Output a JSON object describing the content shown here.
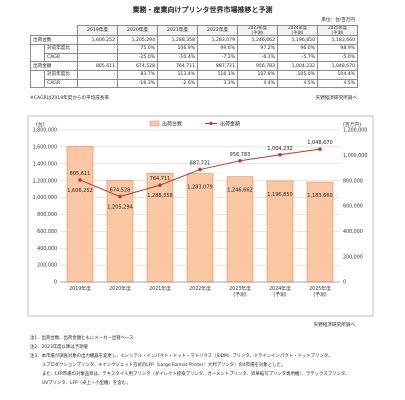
{
  "title": "業務・産業向けプリンタ世界市場推移と予測",
  "unit": "単位：台/百万円",
  "table": {
    "header": [
      "2019年度",
      "2020年度",
      "2021年度",
      "2022年度",
      "2023年度\n(予測)",
      "2024年度\n(予測)",
      "2025年度\n(予測)"
    ],
    "rows": [
      {
        "group": "出荷台数",
        "label": "",
        "values": [
          "1,606,252",
          "1,205,294",
          "1,288,358",
          "1,283,079",
          "1,246,662",
          "1,196,850",
          "1,183,660"
        ]
      },
      {
        "group": "",
        "label": "対前年度比",
        "values": [
          "-",
          "75.0%",
          "106.9%",
          "99.6%",
          "97.2%",
          "96.0%",
          "98.9%"
        ]
      },
      {
        "group": "",
        "label": "CAGR",
        "values": [
          "-",
          "-25.0%",
          "-10.4%",
          "-7.2%",
          "-6.1%",
          "-5.7%",
          "-5.0%"
        ]
      },
      {
        "group": "出荷金額",
        "label": "",
        "values": [
          "805,611",
          "674,528",
          "764,711",
          "887,721",
          "956,783",
          "1,004,232",
          "1,048,670"
        ]
      },
      {
        "group": "",
        "label": "対前年度比",
        "values": [
          "-",
          "83.7%",
          "113.4%",
          "116.1%",
          "107.8%",
          "105.0%",
          "104.4%"
        ]
      },
      {
        "group": "",
        "label": "CAGR",
        "values": [
          "-",
          "-16.3%",
          "-2.6%",
          "3.3%",
          "4.4%",
          "4.5%",
          "4.5%"
        ]
      }
    ]
  },
  "table_note": "※CAGRは2019年度からの平均成長率",
  "source": "矢野経済研究所調べ",
  "chart_data": {
    "type": "bar",
    "categories": [
      "2019年度",
      "2020年度",
      "2021年度",
      "2022年度",
      "2023年度\n(予測)",
      "2024年度\n(予測)",
      "2025年度\n(予測)"
    ],
    "series": [
      {
        "name": "出荷台数",
        "type": "bar",
        "axis": "left",
        "values": [
          1606252,
          1205294,
          1288358,
          1283079,
          1246662,
          1196850,
          1183660
        ],
        "labels": [
          "1,606,252",
          "1,205,294",
          "1,288,358",
          "1,283,079",
          "1,246,662",
          "1,196,850",
          "1,183,660"
        ]
      },
      {
        "name": "出荷金額",
        "type": "line",
        "axis": "right",
        "values": [
          805611,
          674528,
          764711,
          887721,
          956783,
          1004232,
          1048670
        ],
        "labels": [
          "805,611",
          "674,528",
          "764,711",
          "887,721",
          "956,783",
          "1,004,232",
          "1,048,670"
        ]
      }
    ],
    "left_axis": {
      "unit": "(台)",
      "ylim": [
        0,
        1800000
      ],
      "ticks": [
        "0",
        "200,000",
        "400,000",
        "600,000",
        "800,000",
        "1,000,000",
        "1,200,000",
        "1,400,000",
        "1,600,000",
        "1,800,000"
      ]
    },
    "right_axis": {
      "unit": "(百万円)",
      "ylim": [
        0,
        1200000
      ],
      "ticks": [
        "0",
        "200,000",
        "400,000",
        "600,000",
        "800,000",
        "1,000,000",
        "1,200,000"
      ]
    },
    "grid": true,
    "legend": "top",
    "colors": {
      "bar": "#f9c7a4",
      "bar_stroke": "#e98a4d",
      "line": "#c0392b",
      "grid": "#cccccc"
    }
  },
  "notes": [
    "注1．出荷台数、出荷金額ともにメーカー出荷ベース",
    "注2．2023年度以降は予測値",
    "注3．本市場が調査対象の出力機器を変更し、①シリアル・インパクト・ドット・マトリクス（SIDM）プリンタ、②ラインインパクト・ドットプリンタ、",
    "③プロダクションプリンタ、④インクジェット方式のLFP（Large Format Printer：大判プリンタ）の4市場を対象とした。",
    "また、LFP市場の対象品目は、テキスタイル用プリンタ（ダイレクト捺染プリンタ、ガーメントプリンタ、昇華転写プリンタ専用機）、ラテックスプリンタ、",
    "UVプリンタ、LFP（卓上・小型機）を含む。"
  ]
}
